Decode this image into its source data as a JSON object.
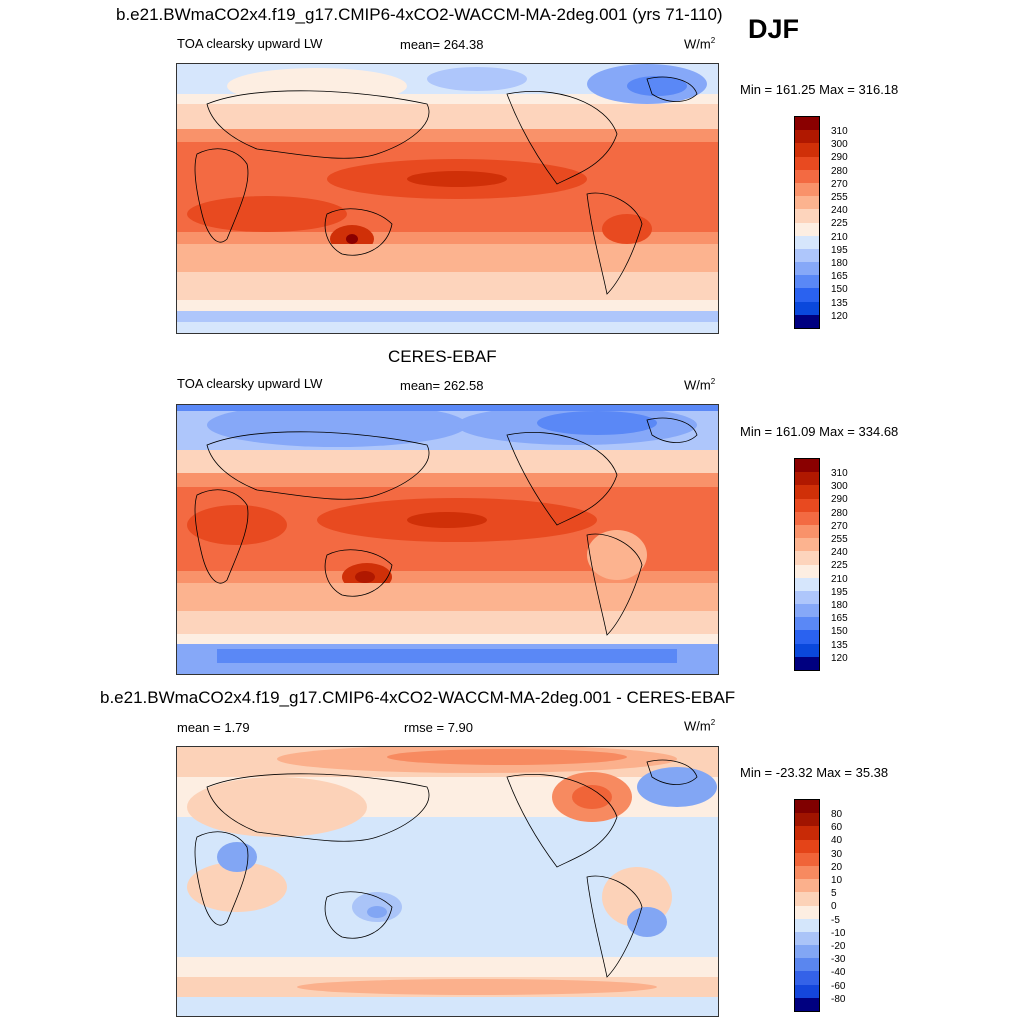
{
  "season": "DJF",
  "colors": {
    "abs_levels": [
      "#000080",
      "#0028b4",
      "#0a48dc",
      "#2a62f0",
      "#5a88f6",
      "#86a8f8",
      "#aec6fb",
      "#d6e6fc",
      "#fdeee2",
      "#fdd4bc",
      "#fcb38f",
      "#f9926a",
      "#f36a42",
      "#e84a20",
      "#d03008",
      "#b01800",
      "#8a0000"
    ],
    "diff_levels": [
      "#000080",
      "#0a2ab8",
      "#1446dc",
      "#3462e8",
      "#5a86ef",
      "#82a6f4",
      "#aac4f8",
      "#d4e6fb",
      "#fdeee2",
      "#fcd2b8",
      "#fbb08c",
      "#f78a60",
      "#f06438",
      "#e44418",
      "#c82a06",
      "#a01400",
      "#800000"
    ]
  },
  "panels": [
    {
      "id": "model",
      "title": "b.e21.BWmaCO2x4.f19_g17.CMIP6-4xCO2-WACCM-MA-2deg.001 (yrs 71-110)",
      "left_label": "TOA clearsky upward LW",
      "center_label": "mean= 264.38",
      "units": "W/m",
      "units_sup": "2",
      "minmax": "Min = 161.25 Max = 316.18"
    },
    {
      "id": "obs",
      "title": "CERES-EBAF",
      "left_label": "TOA clearsky upward LW",
      "center_label": "mean= 262.58",
      "units": "W/m",
      "units_sup": "2",
      "minmax": "Min = 161.09 Max = 334.68"
    },
    {
      "id": "diff",
      "title": "b.e21.BWmaCO2x4.f19_g17.CMIP6-4xCO2-WACCM-MA-2deg.001 - CERES-EBAF",
      "left_label": "mean =   1.79",
      "center_label": "rmse =   7.90",
      "units": "W/m",
      "units_sup": "2",
      "minmax": "Min = -23.32 Max =  35.38"
    }
  ],
  "chart_data": [
    {
      "type": "heatmap",
      "title": "b.e21.BWmaCO2x4.f19_g17.CMIP6-4xCO2-WACCM-MA-2deg.001 (yrs 71-110)",
      "variable": "TOA clearsky upward LW",
      "units": "W/m2",
      "mean": 264.38,
      "min": 161.25,
      "max": 316.18,
      "contour_levels": [
        310,
        300,
        290,
        280,
        270,
        255,
        240,
        225,
        210,
        195,
        180,
        165,
        150,
        135,
        120
      ]
    },
    {
      "type": "heatmap",
      "title": "CERES-EBAF",
      "variable": "TOA clearsky upward LW",
      "units": "W/m2",
      "mean": 262.58,
      "min": 161.09,
      "max": 334.68,
      "contour_levels": [
        310,
        300,
        290,
        280,
        270,
        255,
        240,
        225,
        210,
        195,
        180,
        165,
        150,
        135,
        120
      ]
    },
    {
      "type": "heatmap",
      "title": "b.e21.BWmaCO2x4.f19_g17.CMIP6-4xCO2-WACCM-MA-2deg.001 - CERES-EBAF",
      "units": "W/m2",
      "mean": 1.79,
      "rmse": 7.9,
      "min": -23.32,
      "max": 35.38,
      "contour_levels": [
        80,
        60,
        40,
        30,
        20,
        10,
        5,
        0,
        -5,
        -10,
        -20,
        -30,
        -40,
        -60,
        -80
      ]
    }
  ]
}
